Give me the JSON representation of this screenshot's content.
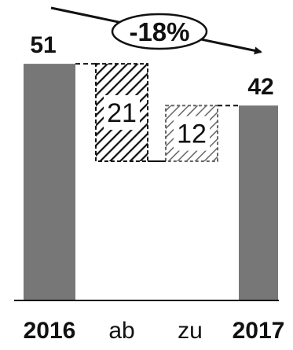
{
  "chart_data": {
    "type": "bar",
    "subtype": "waterfall",
    "categories": [
      "2016",
      "ab",
      "zu",
      "2017"
    ],
    "values": [
      51,
      -21,
      12,
      42
    ],
    "value_labels": [
      "51",
      "21",
      "12",
      "42"
    ],
    "annotation": "-18%",
    "colors": {
      "total": "#777777",
      "decrease_hatch": "#111111",
      "increase_hatch": "#666666",
      "axis": "#111111"
    },
    "grid": false,
    "legend": "none"
  }
}
